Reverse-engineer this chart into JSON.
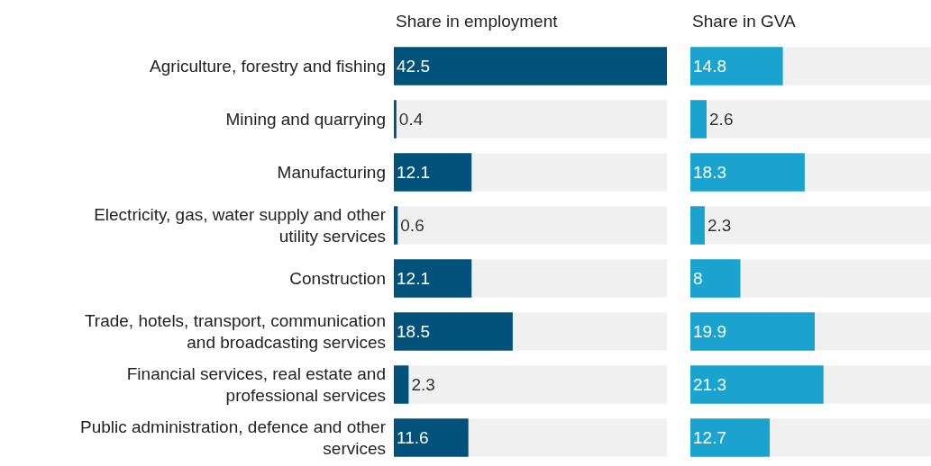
{
  "chart_data": [
    {
      "type": "bar",
      "orientation": "horizontal",
      "title": "Share in employment",
      "categories": [
        "Agriculture, forestry and fishing",
        "Mining and quarrying",
        "Manufacturing",
        "Electricity, gas, water supply and other utility services",
        "Construction",
        "Trade, hotels, transport, communication and broadcasting services",
        "Financial services, real estate and professional services",
        "Public administration, defence and other services"
      ],
      "series": [
        {
          "color": "#00527a",
          "values": [
            42.5,
            0.4,
            12.1,
            0.6,
            12.1,
            18.5,
            2.3,
            11.6
          ]
        }
      ],
      "xlim": [
        0,
        42.5
      ],
      "data_labels": true,
      "tick_labels": "y"
    },
    {
      "type": "bar",
      "orientation": "horizontal",
      "title": "Share in GVA",
      "categories": [
        "Agriculture, forestry and fishing",
        "Mining and quarrying",
        "Manufacturing",
        "Electricity, gas, water supply and other utility services",
        "Construction",
        "Trade, hotels, transport, communication and broadcasting services",
        "Financial services, real estate and professional services",
        "Public administration, defence and other services"
      ],
      "series": [
        {
          "color": "#1aa3cf",
          "values": [
            14.8,
            2.6,
            18.3,
            2.3,
            8,
            19.9,
            21.3,
            12.7
          ]
        }
      ],
      "xlim": [
        0,
        38.5
      ],
      "data_labels": true,
      "tick_labels": false
    }
  ]
}
